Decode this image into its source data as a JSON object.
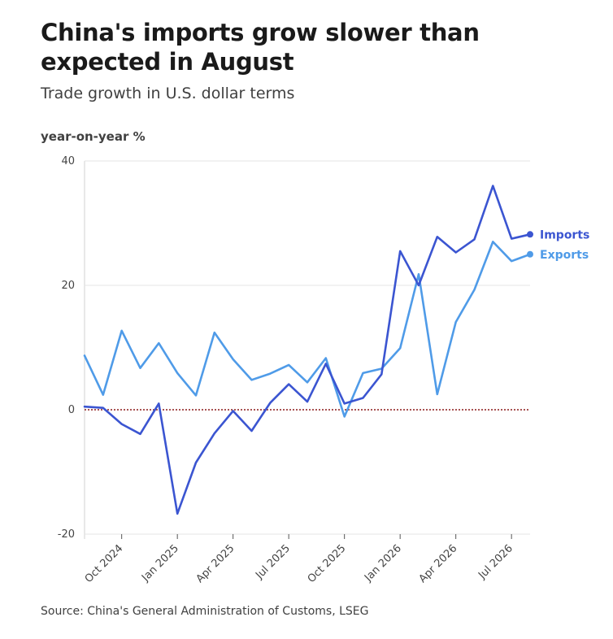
{
  "colors": {
    "imports": "#3b55d1",
    "exports": "#4f9be8",
    "zero_line": "#8b1a1a",
    "grid": "#e6e6e6"
  },
  "chart_data": {
    "type": "line",
    "title": "China's imports grow slower than expected in August",
    "subtitle": "Trade growth in U.S. dollar terms",
    "ylabel": "year-on-year %",
    "source": "Source: China's General Administration of Customs, LSEG",
    "ylim": [
      -20,
      40
    ],
    "yticks": [
      -20,
      0,
      20,
      40
    ],
    "grid": true,
    "x": [
      "2024-08",
      "2024-09",
      "2024-10",
      "2024-11",
      "2024-12",
      "2025-01",
      "2025-02",
      "2025-03",
      "2025-04",
      "2025-05",
      "2025-06",
      "2025-07",
      "2025-08",
      "2025-09",
      "2025-10",
      "2025-11",
      "2025-12",
      "2026-01",
      "2026-02",
      "2026-03",
      "2026-04",
      "2026-05",
      "2026-06",
      "2026-07",
      "2026-08"
    ],
    "xticks": [
      "Oct 2024",
      "Jan 2025",
      "Apr 2025",
      "Jul 2025",
      "Oct 2025",
      "Jan 2026",
      "Apr 2026",
      "Jul 2026"
    ],
    "xtick_positions": [
      "2024-10",
      "2025-01",
      "2025-04",
      "2025-07",
      "2025-10",
      "2026-01",
      "2026-04",
      "2026-07"
    ],
    "series": [
      {
        "name": "Imports",
        "key": "imports",
        "values": [
          0.5,
          0.3,
          -2.3,
          -3.9,
          1.0,
          -16.7,
          -8.5,
          -3.8,
          -0.2,
          -3.4,
          1.1,
          4.1,
          1.3,
          7.4,
          1.0,
          1.9,
          5.7,
          25.5,
          20.0,
          27.8,
          25.3,
          27.4,
          36.0,
          27.5,
          28.2
        ]
      },
      {
        "name": "Exports",
        "key": "exports",
        "values": [
          8.7,
          2.4,
          12.7,
          6.7,
          10.7,
          5.9,
          2.3,
          12.4,
          8.1,
          4.8,
          5.8,
          7.2,
          4.4,
          8.3,
          -1.1,
          5.9,
          6.6,
          9.9,
          21.8,
          2.5,
          14.1,
          19.3,
          27.0,
          23.9,
          25.0
        ]
      }
    ]
  }
}
